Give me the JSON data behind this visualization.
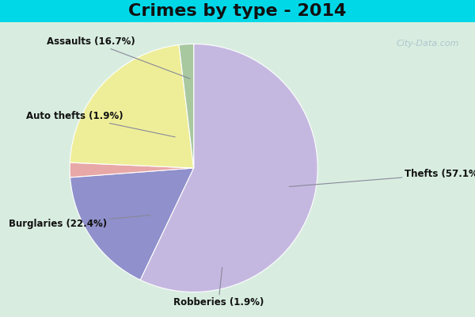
{
  "title": "Crimes by type - 2014",
  "slices": [
    {
      "label": "Thefts",
      "pct": 57.1,
      "color": "#c5b8e0"
    },
    {
      "label": "Assaults",
      "pct": 16.7,
      "color": "#9090cc"
    },
    {
      "label": "Auto thefts",
      "pct": 1.9,
      "color": "#e8a8a8"
    },
    {
      "label": "Burglaries",
      "pct": 22.4,
      "color": "#eeee99"
    },
    {
      "label": "Robberies",
      "pct": 1.9,
      "color": "#a8c8a0"
    }
  ],
  "title_fontsize": 16,
  "title_fontweight": "bold",
  "bg_color_outer": "#00d8e8",
  "bg_color_inner": "#d8ede0",
  "watermark": "City-Data.com",
  "label_fontsize": 8.5,
  "label_color": "#111111"
}
